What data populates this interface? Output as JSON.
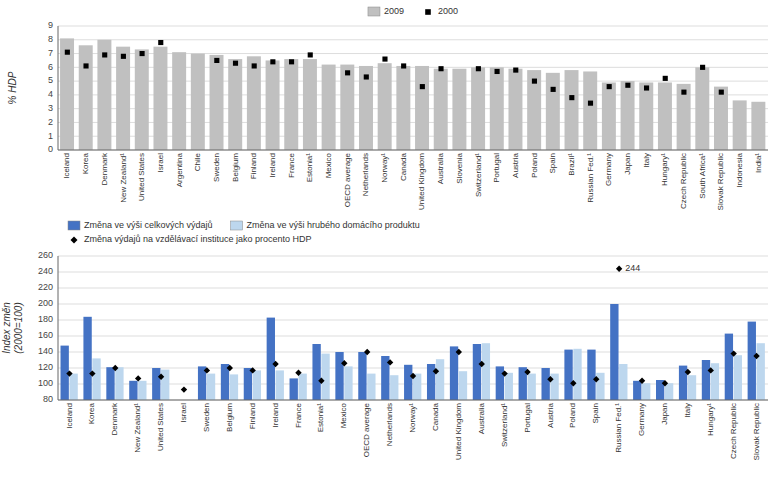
{
  "chart_data": [
    {
      "type": "bar",
      "categories": [
        "Iceland",
        "Korea",
        "Denmark",
        "New Zealand¹",
        "United States",
        "Israel",
        "Argentina",
        "Chile",
        "Sweden",
        "Belgium",
        "Finland",
        "Ireland",
        "France",
        "Estonia¹",
        "Mexico",
        "OECD average",
        "Netherlands",
        "Norway¹",
        "Canada",
        "United Kingdom",
        "Australia",
        "Slovenia",
        "Switzerland¹",
        "Portugal",
        "Austria",
        "Poland",
        "Spain",
        "Brazil¹",
        "Russian Fed.¹",
        "Germany",
        "Japan",
        "Italy",
        "Hungary¹",
        "Czech Republic",
        "South Africa¹",
        "Slovak Republic",
        "Indonesia",
        "India¹"
      ],
      "series": [
        {
          "name": "2009",
          "type": "bar",
          "color": "#c0c0c0",
          "values": [
            8.1,
            7.6,
            8.0,
            7.5,
            7.3,
            7.5,
            7.1,
            7.0,
            6.9,
            6.6,
            6.8,
            6.5,
            6.6,
            6.6,
            6.2,
            6.2,
            6.1,
            6.3,
            6.1,
            6.1,
            5.9,
            5.9,
            6.0,
            6.0,
            5.9,
            5.8,
            5.6,
            5.8,
            5.7,
            4.9,
            5.0,
            4.9,
            4.9,
            4.8,
            6.0,
            4.6,
            3.6,
            3.5
          ]
        },
        {
          "name": "2000",
          "type": "scatter",
          "marker": "square",
          "color": "#000000",
          "values": [
            7.1,
            6.1,
            6.9,
            6.8,
            7.0,
            7.8,
            null,
            null,
            6.5,
            6.3,
            6.1,
            6.4,
            6.4,
            6.9,
            null,
            5.6,
            5.3,
            6.6,
            6.1,
            4.6,
            5.9,
            null,
            5.9,
            5.7,
            5.8,
            5.0,
            4.4,
            3.8,
            3.4,
            4.6,
            4.7,
            4.5,
            5.2,
            4.2,
            6.0,
            4.2,
            null,
            null
          ]
        }
      ],
      "ylim": [
        0,
        9
      ],
      "yticks": [
        0,
        1,
        2,
        3,
        4,
        5,
        6,
        7,
        8,
        9
      ],
      "y_label": "% HDP",
      "grid": true,
      "legend": "top"
    },
    {
      "type": "bar",
      "categories": [
        "Iceland",
        "Korea",
        "Denmark",
        "New Zealand¹",
        "United States",
        "Israel",
        "Sweden",
        "Belgium",
        "Finland",
        "Ireland",
        "France",
        "Estonia¹",
        "Mexico",
        "OECD average",
        "Netherlands",
        "Norway¹",
        "Canada",
        "United Kingdom",
        "Australia",
        "Switzerland¹",
        "Portugal",
        "Austria",
        "Poland",
        "Spain",
        "Russian Fed.¹",
        "Germany",
        "Japan",
        "Italy",
        "Hungary¹",
        "Czech Republic",
        "Slovak Republic"
      ],
      "series": [
        {
          "name": "Změna ve výši celkových výdajů",
          "type": "bar",
          "color": "#4472c4",
          "values": [
            148,
            184,
            121,
            104,
            120,
            null,
            122,
            125,
            120,
            183,
            107,
            150,
            140,
            140,
            135,
            124,
            125,
            147,
            150,
            122,
            121,
            120,
            143,
            143,
            200,
            104,
            105,
            123,
            130,
            163,
            178
          ]
        },
        {
          "name": "Změna ve výši hrubého domácího produktu",
          "type": "bar",
          "color": "#bdd7ee",
          "values": [
            113,
            132,
            121,
            104,
            118,
            null,
            113,
            112,
            117,
            117,
            113,
            138,
            122,
            113,
            111,
            113,
            131,
            116,
            151,
            114,
            113,
            113,
            144,
            114,
            125,
            101,
            101,
            111,
            126,
            136,
            151
          ]
        },
        {
          "name": "Změna výdajů na vzdělávací instituce jako procento HDP",
          "type": "scatter",
          "marker": "diamond",
          "color": "#000000",
          "values": [
            113,
            113,
            120,
            107,
            109,
            93,
            117,
            120,
            117,
            125,
            114,
            104,
            126,
            140,
            127,
            110,
            116,
            140,
            125,
            113,
            115,
            106,
            101,
            106,
            244,
            104,
            101,
            115,
            117,
            138,
            135
          ]
        }
      ],
      "annotations": [
        {
          "text": "244",
          "x": "Russian Fed.¹",
          "y": 244
        }
      ],
      "ylim": [
        80,
        260
      ],
      "yticks": [
        80,
        100,
        120,
        140,
        160,
        180,
        200,
        220,
        240,
        260
      ],
      "y_label": "Index změn\n(2000=100)",
      "grid": true,
      "legend": "top left"
    }
  ]
}
